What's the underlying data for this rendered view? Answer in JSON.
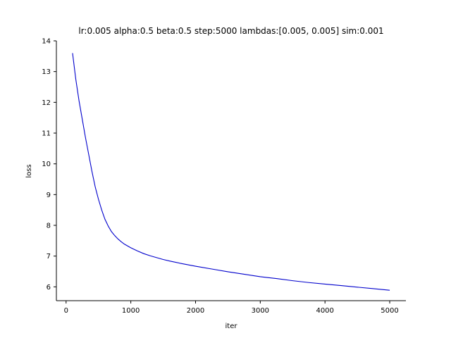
{
  "chart_data": {
    "type": "line",
    "title": "lr:0.005 alpha:0.5 beta:0.5 step:5000 lambdas:[0.005, 0.005] sim:0.001",
    "xlabel": "iter",
    "ylabel": "loss",
    "xlim": [
      -150,
      5250
    ],
    "ylim": [
      5.55,
      14.0
    ],
    "xticks": [
      0,
      1000,
      2000,
      3000,
      4000,
      5000
    ],
    "yticks": [
      6,
      7,
      8,
      9,
      10,
      11,
      12,
      13,
      14
    ],
    "grid": false,
    "line_color": "#0000cc",
    "series": [
      {
        "x": [
          100,
          150,
          200,
          250,
          300,
          350,
          400,
          450,
          500,
          550,
          600,
          650,
          700,
          750,
          800,
          850,
          900,
          950,
          1000,
          1100,
          1200,
          1300,
          1400,
          1500,
          1600,
          1800,
          2000,
          2250,
          2500,
          2750,
          3000,
          3250,
          3500,
          3750,
          4000,
          4250,
          4500,
          4750,
          5000
        ],
        "y": [
          13.6,
          12.75,
          12.05,
          11.45,
          10.85,
          10.3,
          9.75,
          9.25,
          8.85,
          8.5,
          8.2,
          7.98,
          7.8,
          7.67,
          7.56,
          7.47,
          7.39,
          7.33,
          7.27,
          7.17,
          7.08,
          7.01,
          6.95,
          6.89,
          6.84,
          6.75,
          6.67,
          6.58,
          6.49,
          6.41,
          6.33,
          6.27,
          6.2,
          6.14,
          6.09,
          6.04,
          5.99,
          5.94,
          5.89
        ]
      }
    ]
  }
}
